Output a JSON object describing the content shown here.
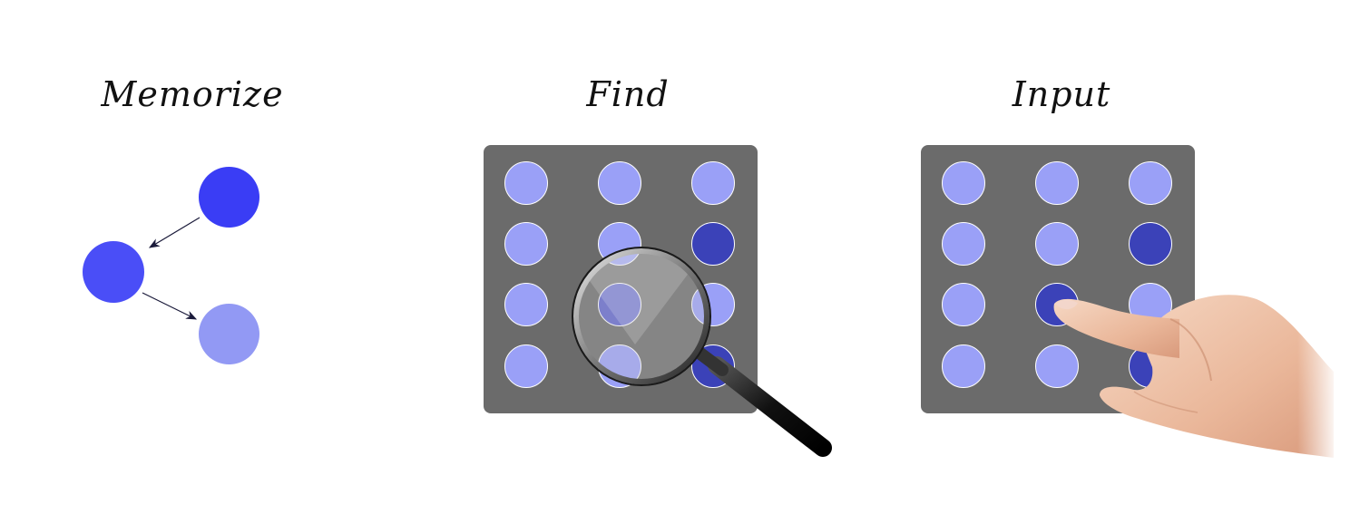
{
  "titles": {
    "memorize": "Memorize",
    "find": "Find",
    "input": "Input"
  },
  "colors": {
    "panel": "#6b6b6b",
    "light_dot": "#9aa0f7",
    "dark_dot": "#3b42b8",
    "highlight_dot": "#5f63cc",
    "memorize_dark": "#3a3df5",
    "memorize_mid": "#4a4ef7",
    "memorize_light": "#9299f4"
  },
  "find_grid": {
    "rows": 4,
    "cols": 3,
    "dark_cells": [
      [
        1,
        2
      ],
      [
        3,
        2
      ]
    ],
    "highlight_cells": [
      [
        2,
        1
      ]
    ]
  },
  "input_grid": {
    "rows": 4,
    "cols": 3,
    "dark_cells": [
      [
        1,
        2
      ],
      [
        2,
        1
      ],
      [
        3,
        2
      ]
    ]
  },
  "icons": {
    "find_tool": "magnifying-glass-icon",
    "input_tool": "pointing-hand-icon"
  }
}
